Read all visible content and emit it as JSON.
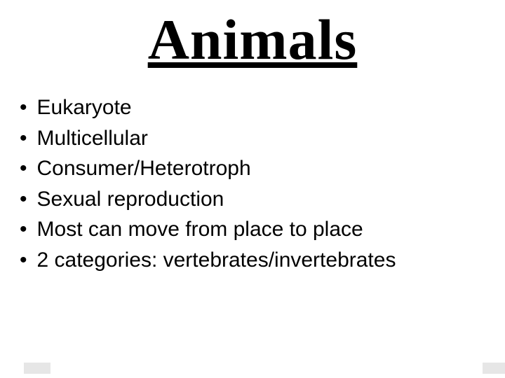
{
  "slide": {
    "title": "Animals",
    "title_fontsize": 82,
    "title_font_family": "Times New Roman",
    "title_color": "#000000",
    "title_weight": "bold",
    "title_underline": true,
    "bullets": [
      "Eukaryote",
      "Multicellular",
      "Consumer/Heterotroph",
      "Sexual reproduction",
      "Most can move from place to place",
      "2 categories:  vertebrates/invertebrates"
    ],
    "bullet_marker": "•",
    "bullet_fontsize": 30,
    "bullet_font_family": "Arial",
    "bullet_color": "#000000",
    "background_color": "#ffffff",
    "footer_block_color": "#e6e6e6"
  }
}
